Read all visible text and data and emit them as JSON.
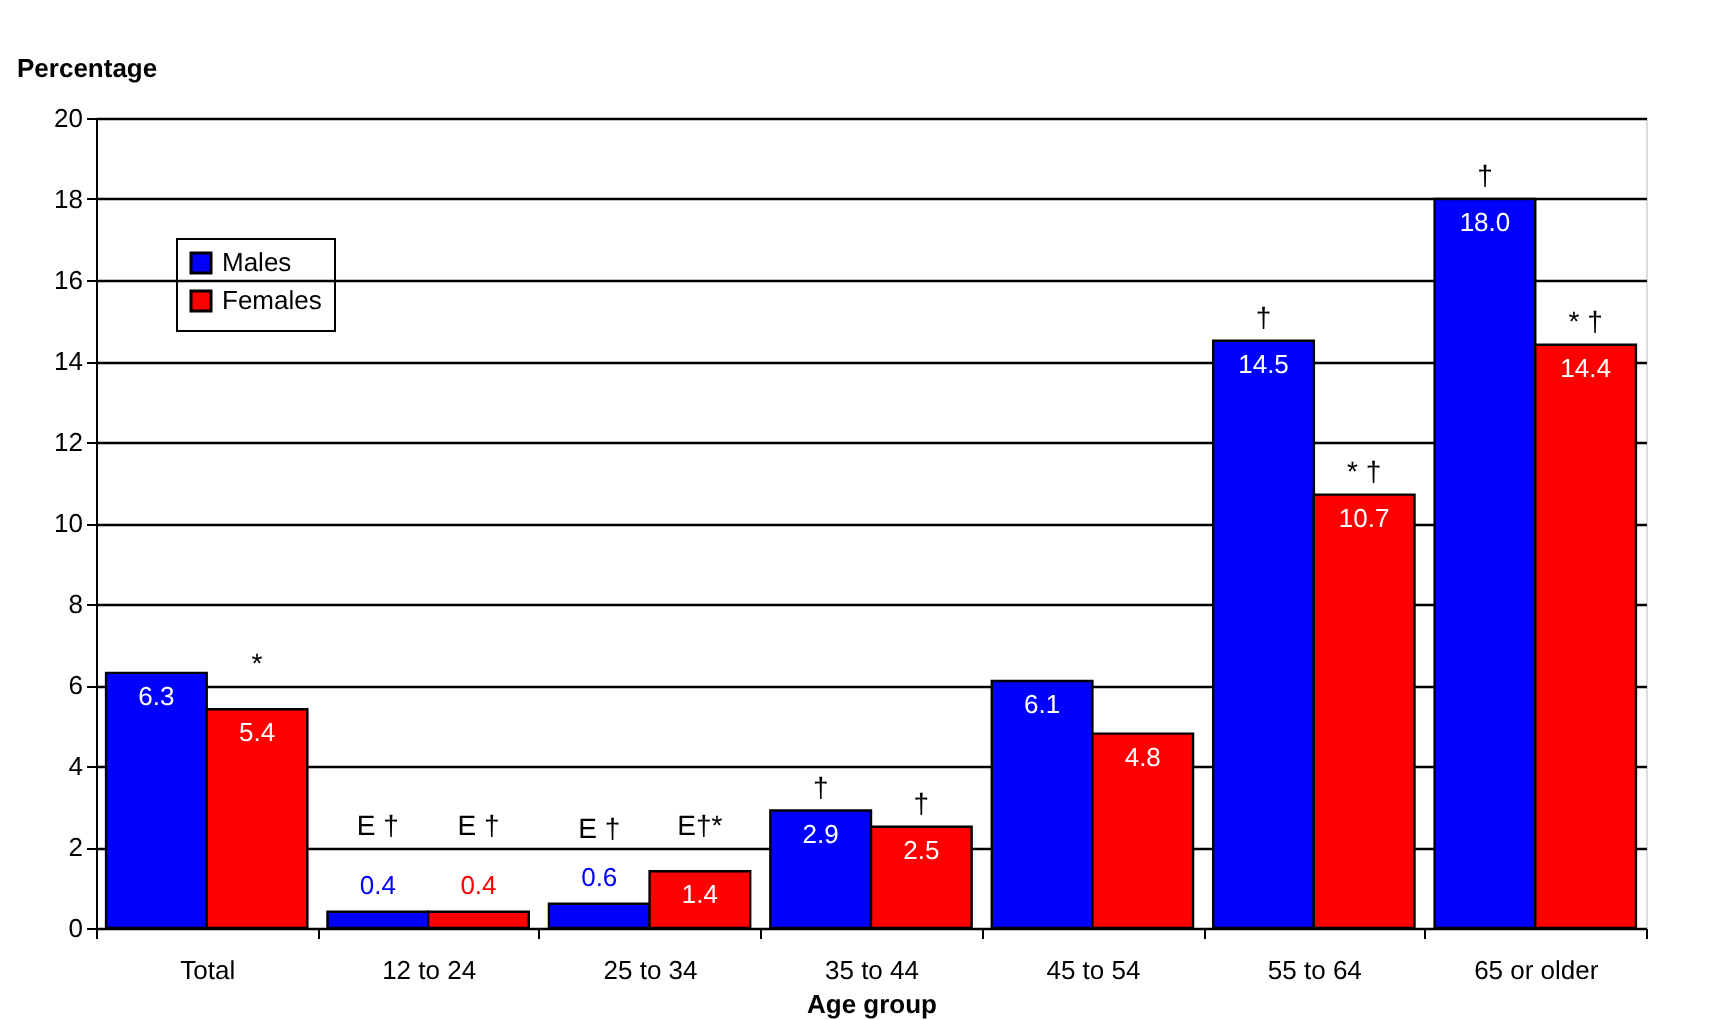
{
  "chart_data": {
    "type": "bar",
    "xlabel": "Age group",
    "ylabel": "Percentage",
    "categories": [
      "Total",
      "12 to 24",
      "25 to 34",
      "35 to 44",
      "45 to 54",
      "55 to 64",
      "65 or older"
    ],
    "series": [
      {
        "name": "Males",
        "color": "#0000ff",
        "values": [
          6.3,
          0.4,
          0.6,
          2.9,
          6.1,
          14.5,
          18.0
        ],
        "value_labels": [
          "6.3",
          "0.4",
          "0.6",
          "2.9",
          "6.1",
          "14.5",
          "18.0"
        ]
      },
      {
        "name": "Females",
        "color": "#ff0000",
        "values": [
          5.4,
          0.4,
          1.4,
          2.5,
          4.8,
          10.7,
          14.4
        ],
        "value_labels": [
          "5.4",
          "0.4",
          "1.4",
          "2.5",
          "4.8",
          "10.7",
          "14.4"
        ]
      }
    ],
    "ylim": [
      0,
      20
    ],
    "yticks": [
      0,
      2,
      4,
      6,
      8,
      10,
      12,
      14,
      16,
      18,
      20
    ],
    "grid": "y",
    "legend": "top left",
    "annotations": [
      {
        "text": "*",
        "x": "Total",
        "y": 5.4
      },
      {
        "text": "E †",
        "x": "12 to 24",
        "y": 0.4
      },
      {
        "text": "E †",
        "x": "12 to 24",
        "y": 0.4
      },
      {
        "text": "E †",
        "x": "25 to 34",
        "y": 0.6
      },
      {
        "text": "E†*",
        "x": "25 to 34",
        "y": 1.4
      },
      {
        "text": "†",
        "x": "35 to 44",
        "y": 2.9
      },
      {
        "text": "†",
        "x": "35 to 44",
        "y": 2.5
      },
      {
        "text": "†",
        "x": "55 to 64",
        "y": 14.5
      },
      {
        "text": "* †",
        "x": "55 to 64",
        "y": 10.7
      },
      {
        "text": "†",
        "x": "65 or older",
        "y": 18.0
      },
      {
        "text": "* †",
        "x": "65 or older",
        "y": 14.4
      }
    ]
  }
}
